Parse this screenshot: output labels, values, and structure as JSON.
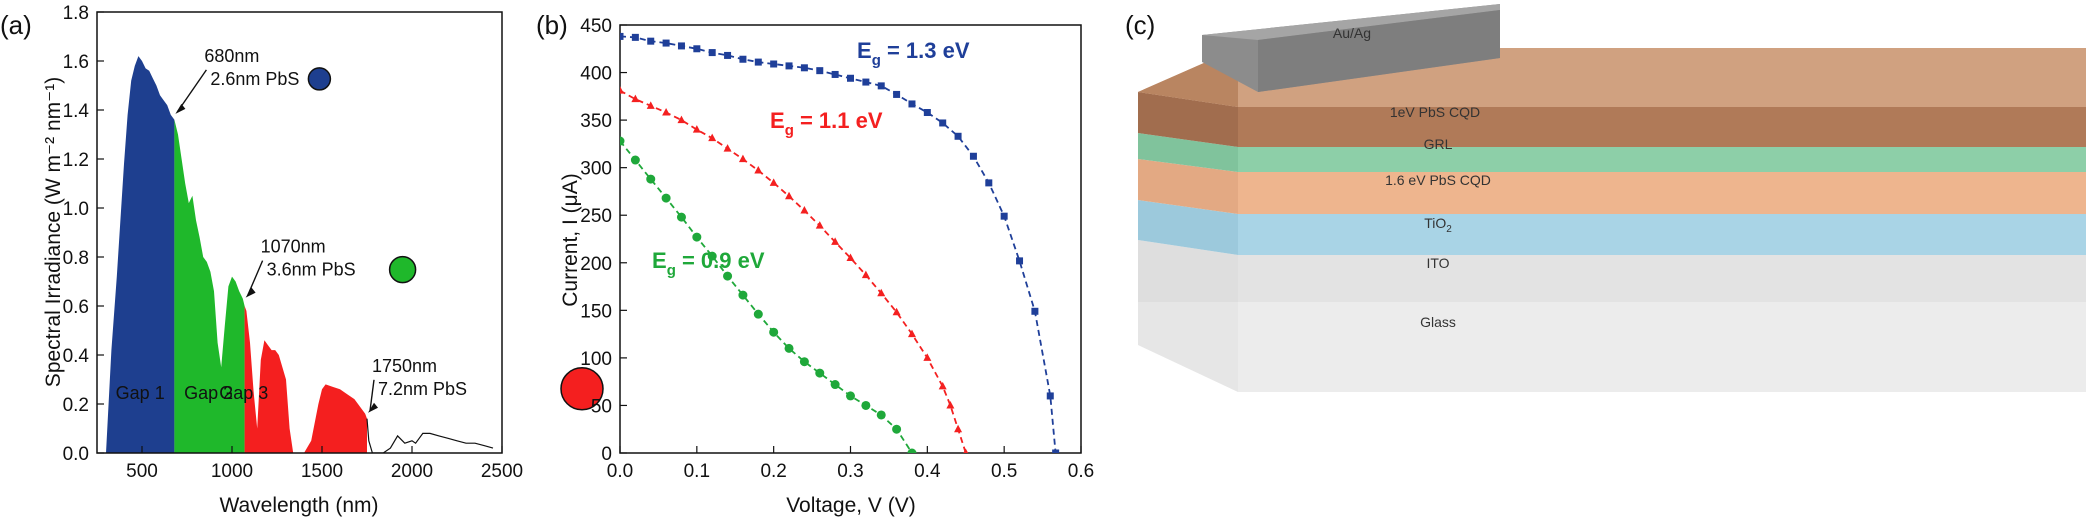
{
  "panels": {
    "a": "(a)",
    "b": "(b)",
    "c": "(c)"
  },
  "chart_data": [
    {
      "panel": "(a)",
      "type": "area",
      "xlabel": "Wavelength (nm)",
      "ylabel": "Spectral Irradiance (W m⁻² nm⁻¹)",
      "xlim": [
        250,
        2500
      ],
      "ylim": [
        0,
        1.8
      ],
      "xticks": [
        500,
        1000,
        1500,
        2000,
        2500
      ],
      "yticks": [
        0.0,
        0.2,
        0.4,
        0.6,
        0.8,
        1.0,
        1.2,
        1.4,
        1.6,
        1.8
      ],
      "grid": false,
      "spectrum": {
        "x": [
          300,
          330,
          360,
          380,
          400,
          420,
          440,
          460,
          480,
          500,
          520,
          540,
          560,
          580,
          600,
          620,
          640,
          660,
          680,
          700,
          720,
          740,
          760,
          780,
          800,
          820,
          840,
          860,
          880,
          900,
          920,
          940,
          960,
          980,
          1000,
          1020,
          1040,
          1060,
          1070,
          1080,
          1100,
          1120,
          1140,
          1160,
          1180,
          1200,
          1220,
          1240,
          1260,
          1280,
          1300,
          1320,
          1340,
          1360,
          1400,
          1440,
          1480,
          1500,
          1520,
          1560,
          1600,
          1640,
          1680,
          1700,
          1720,
          1740,
          1750,
          1760,
          1780,
          1800,
          1840,
          1880,
          1920,
          1960,
          2000,
          2020,
          2040,
          2060,
          2080,
          2100,
          2150,
          2200,
          2250,
          2300,
          2350,
          2400,
          2450
        ],
        "y": [
          0.0,
          0.42,
          0.72,
          0.95,
          1.18,
          1.38,
          1.52,
          1.58,
          1.62,
          1.6,
          1.57,
          1.56,
          1.53,
          1.5,
          1.46,
          1.44,
          1.42,
          1.38,
          1.36,
          1.3,
          1.2,
          1.1,
          1.02,
          1.05,
          0.95,
          0.88,
          0.8,
          0.78,
          0.74,
          0.66,
          0.45,
          0.35,
          0.52,
          0.68,
          0.72,
          0.7,
          0.66,
          0.63,
          0.6,
          0.58,
          0.45,
          0.25,
          0.1,
          0.38,
          0.46,
          0.44,
          0.42,
          0.42,
          0.4,
          0.35,
          0.3,
          0.1,
          0.0,
          0.0,
          0.0,
          0.05,
          0.2,
          0.26,
          0.28,
          0.27,
          0.26,
          0.24,
          0.22,
          0.2,
          0.18,
          0.16,
          0.14,
          0.05,
          0.0,
          0.0,
          0.0,
          0.02,
          0.07,
          0.04,
          0.05,
          0.04,
          0.06,
          0.08,
          0.08,
          0.08,
          0.07,
          0.06,
          0.05,
          0.04,
          0.04,
          0.03,
          0.02
        ],
        "fill_ranges": [
          {
            "label": "Gap 1",
            "from": 300,
            "to": 680,
            "color": "#1e3f8f"
          },
          {
            "label": "Gap 2",
            "from": 680,
            "to": 1070,
            "color": "#1fb82b"
          },
          {
            "label": "Gap 3",
            "from": 1070,
            "to": 1750,
            "color": "#f41f1f"
          }
        ]
      },
      "annotations": [
        {
          "line1": "680nm",
          "line2": "2.6nm PbS",
          "x": 680,
          "y": 1.38,
          "dot_color": "#1e3f8f"
        },
        {
          "line1": "1070nm",
          "line2": "3.6nm PbS",
          "x": 1070,
          "y": 0.63,
          "dot_color": "#1fb82b"
        },
        {
          "line1": "1750nm",
          "line2": "7.2nm PbS",
          "x": 1750,
          "y": 0.16,
          "dot_color": "#f41f1f"
        }
      ]
    },
    {
      "panel": "(b)",
      "type": "line",
      "xlabel": "Voltage, V (V)",
      "ylabel": "Current, I (μA)",
      "xlim": [
        0,
        0.6
      ],
      "ylim": [
        0,
        450
      ],
      "xticks": [
        0.0,
        0.1,
        0.2,
        0.3,
        0.4,
        0.5,
        0.6
      ],
      "yticks": [
        0,
        50,
        100,
        150,
        200,
        250,
        300,
        350,
        400,
        450
      ],
      "grid": false,
      "series": [
        {
          "name_main": "E",
          "name_sub": "g",
          "name_rest": " = 1.3 eV",
          "color": "#1f3f99",
          "marker": "square",
          "x": [
            0,
            0.02,
            0.04,
            0.06,
            0.08,
            0.1,
            0.12,
            0.14,
            0.16,
            0.18,
            0.2,
            0.22,
            0.24,
            0.26,
            0.28,
            0.3,
            0.32,
            0.34,
            0.36,
            0.38,
            0.4,
            0.42,
            0.44,
            0.46,
            0.48,
            0.5,
            0.52,
            0.54,
            0.56,
            0.567
          ],
          "y": [
            438,
            437,
            433,
            431,
            428,
            425,
            421,
            418,
            414,
            411,
            409,
            407,
            405,
            402,
            398,
            394,
            390,
            386,
            377,
            367,
            358,
            347,
            333,
            312,
            284,
            249,
            202,
            149,
            60,
            0
          ]
        },
        {
          "name_main": "E",
          "name_sub": "g",
          "name_rest": " = 1.1 eV",
          "color": "#f42020",
          "marker": "triangle",
          "x": [
            0,
            0.02,
            0.04,
            0.06,
            0.08,
            0.1,
            0.12,
            0.14,
            0.16,
            0.18,
            0.2,
            0.22,
            0.24,
            0.26,
            0.28,
            0.3,
            0.32,
            0.34,
            0.36,
            0.38,
            0.4,
            0.42,
            0.43,
            0.44,
            0.45
          ],
          "y": [
            381,
            372,
            365,
            358,
            350,
            340,
            331,
            320,
            309,
            297,
            284,
            270,
            255,
            239,
            222,
            205,
            187,
            168,
            148,
            125,
            100,
            70,
            50,
            25,
            0
          ]
        },
        {
          "name_main": "E",
          "name_sub": "g",
          "name_rest": " = 0.9 eV",
          "color": "#1fa83a",
          "marker": "circle",
          "x": [
            0,
            0.02,
            0.04,
            0.06,
            0.08,
            0.1,
            0.12,
            0.14,
            0.16,
            0.18,
            0.2,
            0.22,
            0.24,
            0.26,
            0.28,
            0.3,
            0.32,
            0.34,
            0.36,
            0.38
          ],
          "y": [
            328,
            308,
            288,
            268,
            248,
            227,
            207,
            186,
            166,
            146,
            127,
            110,
            96,
            84,
            72,
            60,
            50,
            40,
            25,
            0
          ]
        }
      ]
    }
  ],
  "device": {
    "layers": [
      {
        "label": "Au/Ag",
        "color": "#8c8c8c"
      },
      {
        "label": "1eV PbS CQD",
        "color": "#b07a58"
      },
      {
        "label": "GRL",
        "color": "#8dcfa8"
      },
      {
        "label": "1.6 eV PbS CQD",
        "color": "#eeb58e"
      },
      {
        "label_main": "TiO",
        "label_sub": "2",
        "color": "#a9d4e6"
      },
      {
        "label": "ITO",
        "color": "#e3e3e3"
      },
      {
        "label": "Glass",
        "color": "#ececec"
      }
    ]
  }
}
